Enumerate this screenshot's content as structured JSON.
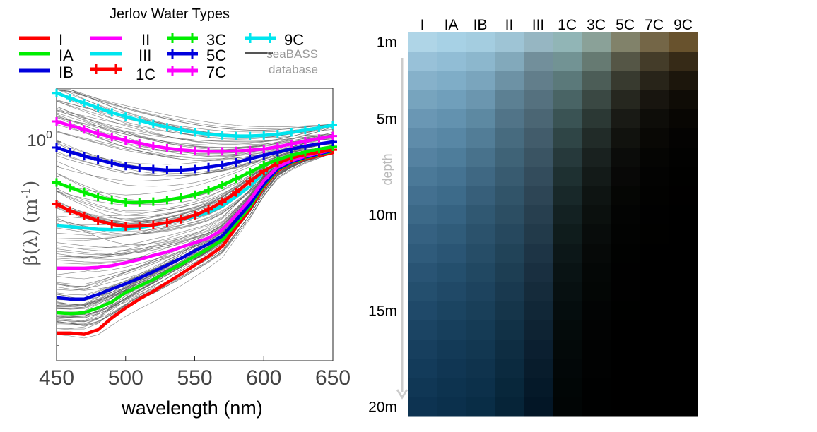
{
  "chart_data": [
    {
      "type": "line",
      "title": "Jerlov Water Types",
      "xlabel": "wavelength (nm)",
      "ylabel_prefix": "β(λ) (m",
      "ylabel_exp": "-1",
      "ylabel_suffix": ")",
      "ytick_base": "10",
      "ytick_exp": "0",
      "ytick_value": 1,
      "xlim": [
        450,
        650
      ],
      "xticks": [
        450,
        500,
        550,
        600,
        650
      ],
      "yscale": "log",
      "ylim": [
        0.04,
        2.2
      ],
      "x": [
        450,
        460,
        470,
        480,
        490,
        500,
        510,
        520,
        530,
        540,
        550,
        560,
        570,
        580,
        590,
        600,
        610,
        620,
        630,
        640,
        650
      ],
      "series": [
        {
          "name": "I",
          "color": "#ff0000",
          "markers": false,
          "values": [
            0.06,
            0.06,
            0.059,
            0.063,
            0.075,
            0.087,
            0.099,
            0.111,
            0.126,
            0.143,
            0.163,
            0.186,
            0.215,
            0.284,
            0.373,
            0.514,
            0.655,
            0.73,
            0.782,
            0.816,
            0.853
          ]
        },
        {
          "name": "IA",
          "color": "#00ee00",
          "markers": false,
          "values": [
            0.081,
            0.08,
            0.081,
            0.087,
            0.095,
            0.109,
            0.12,
            0.132,
            0.148,
            0.165,
            0.186,
            0.208,
            0.236,
            0.302,
            0.387,
            0.527,
            0.665,
            0.738,
            0.791,
            0.832,
            0.873
          ]
        },
        {
          "name": "IB",
          "color": "#0000dd",
          "markers": false,
          "values": [
            0.101,
            0.099,
            0.099,
            0.106,
            0.115,
            0.124,
            0.135,
            0.148,
            0.163,
            0.18,
            0.201,
            0.223,
            0.251,
            0.316,
            0.401,
            0.537,
            0.673,
            0.745,
            0.798,
            0.839,
            0.881
          ]
        },
        {
          "name": "II",
          "color": "#ff00ff",
          "markers": false,
          "values": [
            0.156,
            0.156,
            0.156,
            0.158,
            0.162,
            0.169,
            0.177,
            0.188,
            0.198,
            0.212,
            0.227,
            0.243,
            0.275,
            0.34,
            0.427,
            0.565,
            0.69,
            0.758,
            0.81,
            0.85,
            0.891
          ]
        },
        {
          "name": "III",
          "color": "#00e5ee",
          "markers": false,
          "values": [
            0.291,
            0.287,
            0.282,
            0.277,
            0.275,
            0.277,
            0.283,
            0.293,
            0.304,
            0.318,
            0.334,
            0.355,
            0.39,
            0.446,
            0.52,
            0.635,
            0.732,
            0.787,
            0.832,
            0.866,
            0.905
          ]
        },
        {
          "name": "1C",
          "color": "#ff0000",
          "markers": true,
          "values": [
            0.4,
            0.363,
            0.337,
            0.313,
            0.298,
            0.288,
            0.29,
            0.295,
            0.305,
            0.32,
            0.34,
            0.37,
            0.415,
            0.475,
            0.56,
            0.65,
            0.73,
            0.79,
            0.83,
            0.86,
            0.89
          ]
        },
        {
          "name": "3C",
          "color": "#00ee00",
          "markers": true,
          "values": [
            0.55,
            0.51,
            0.475,
            0.445,
            0.425,
            0.41,
            0.41,
            0.415,
            0.425,
            0.44,
            0.46,
            0.49,
            0.53,
            0.58,
            0.64,
            0.71,
            0.77,
            0.82,
            0.86,
            0.9,
            0.93
          ]
        },
        {
          "name": "5C",
          "color": "#0000dd",
          "markers": true,
          "values": [
            0.92,
            0.86,
            0.81,
            0.77,
            0.73,
            0.7,
            0.68,
            0.67,
            0.66,
            0.66,
            0.67,
            0.69,
            0.71,
            0.74,
            0.78,
            0.82,
            0.86,
            0.9,
            0.94,
            0.97,
            1.0
          ]
        },
        {
          "name": "7C",
          "color": "#ff00ff",
          "markers": true,
          "values": [
            1.35,
            1.27,
            1.2,
            1.13,
            1.07,
            1.02,
            0.98,
            0.94,
            0.91,
            0.89,
            0.875,
            0.87,
            0.87,
            0.875,
            0.885,
            0.9,
            0.93,
            0.97,
            1.01,
            1.05,
            1.09
          ]
        },
        {
          "name": "9C",
          "color": "#00e5ee",
          "markers": true,
          "values": [
            2.05,
            1.9,
            1.77,
            1.65,
            1.54,
            1.45,
            1.37,
            1.3,
            1.24,
            1.19,
            1.15,
            1.12,
            1.1,
            1.09,
            1.09,
            1.1,
            1.12,
            1.15,
            1.19,
            1.23,
            1.28
          ]
        }
      ],
      "background": {
        "name": "seaBASS database",
        "color": "#555555",
        "count": 140,
        "seed": 7
      }
    },
    {
      "type": "heatmap",
      "columns": [
        "I",
        "IA",
        "IB",
        "II",
        "III",
        "1C",
        "3C",
        "5C",
        "7C",
        "9C"
      ],
      "depth_labels": [
        "1m",
        "5m",
        "10m",
        "15m",
        "20m"
      ],
      "depth_label_values": [
        1,
        5,
        10,
        15,
        20
      ],
      "axis_label": "depth",
      "rows": 20,
      "surface_colors": [
        "#d2eef6",
        "#c9eaf4",
        "#c6e6f0",
        "#c0e0ea",
        "#b8d6dc",
        "#b2d2d2",
        "#a8bdb3",
        "#9c9b7e",
        "#8b7a55",
        "#7c6236"
      ],
      "kd": [
        0.0385,
        0.0436,
        0.053,
        0.083,
        0.158,
        0.129,
        0.195,
        0.32,
        0.44,
        0.57
      ],
      "water_colors": [
        "#1a6aa8",
        "#186aa8",
        "#15639c",
        "#0d4f7c",
        "#063154",
        "#063a3e",
        "#0b2c25",
        "#101a14",
        "#15130c",
        "#151006"
      ]
    }
  ]
}
